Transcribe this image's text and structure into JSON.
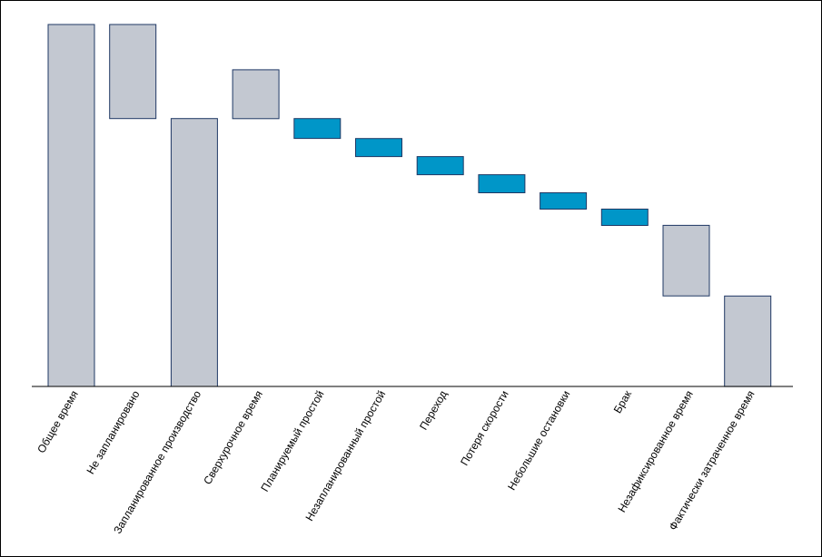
{
  "chart_data": {
    "type": "bar",
    "subtype": "waterfall",
    "categories": [
      "Общее время",
      "Не запланировано",
      "Запланированное производство",
      "Сверхурочное время",
      "Планируемый простой",
      "Незапланированный простой",
      "Переход",
      "Потеря скорости",
      "Небольшие остановки",
      "Брак",
      "Незафиксированное время",
      "Фактически затраченное время"
    ],
    "bars": [
      {
        "start": 0,
        "end": 100,
        "kind": "total"
      },
      {
        "start": 74,
        "end": 100,
        "kind": "total"
      },
      {
        "start": 0,
        "end": 74,
        "kind": "total"
      },
      {
        "start": 74,
        "end": 87.5,
        "kind": "total"
      },
      {
        "start": 68.5,
        "end": 74,
        "kind": "loss"
      },
      {
        "start": 63.5,
        "end": 68.5,
        "kind": "loss"
      },
      {
        "start": 58.5,
        "end": 63.5,
        "kind": "loss"
      },
      {
        "start": 53.5,
        "end": 58.5,
        "kind": "loss"
      },
      {
        "start": 49,
        "end": 53.5,
        "kind": "loss"
      },
      {
        "start": 44.5,
        "end": 49,
        "kind": "loss"
      },
      {
        "start": 25,
        "end": 44.5,
        "kind": "total"
      },
      {
        "start": 0,
        "end": 25,
        "kind": "total"
      }
    ],
    "ylim": [
      0,
      100
    ],
    "grid": false,
    "legend": "none",
    "colors": {
      "total_fill": "#c3c8d1",
      "loss_fill": "#0096c8",
      "bar_stroke": "#1f3864",
      "axis": "#000000"
    }
  }
}
